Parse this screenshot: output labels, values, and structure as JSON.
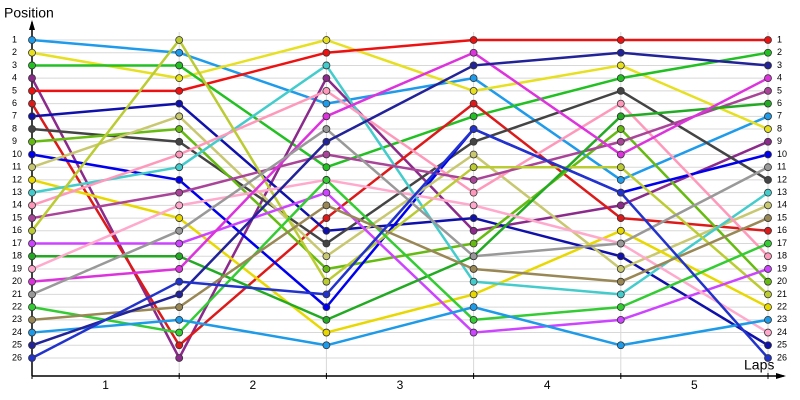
{
  "chart_data": {
    "type": "line",
    "y_title": "Position",
    "x_title": "Laps",
    "categories": [
      "1",
      "2",
      "3",
      "4",
      "5"
    ],
    "x": [
      0,
      1,
      2,
      3,
      4,
      5
    ],
    "xlim": [
      0,
      5
    ],
    "ylim": [
      26,
      1
    ],
    "yticks": [
      1,
      2,
      3,
      4,
      5,
      6,
      7,
      8,
      9,
      10,
      11,
      12,
      13,
      14,
      15,
      16,
      17,
      18,
      19,
      20,
      21,
      22,
      23,
      24,
      25,
      26
    ],
    "grid": true,
    "series": [
      {
        "color": "#1e9bea",
        "values": [
          1,
          2,
          6,
          4,
          12,
          7
        ]
      },
      {
        "color": "#e6e020",
        "values": [
          2,
          4,
          1,
          5,
          3,
          8
        ]
      },
      {
        "color": "#22c022",
        "values": [
          3,
          3,
          11,
          7,
          4,
          2
        ]
      },
      {
        "color": "#8b2a8b",
        "values": [
          4,
          26,
          4,
          16,
          14,
          9
        ]
      },
      {
        "color": "#ee1111",
        "values": [
          5,
          5,
          2,
          1,
          1,
          1
        ]
      },
      {
        "color": "#dd1a1a",
        "values": [
          6,
          25,
          15,
          6,
          15,
          16
        ]
      },
      {
        "color": "#1010aa",
        "values": [
          7,
          6,
          16,
          15,
          18,
          25
        ]
      },
      {
        "color": "#444444",
        "values": [
          8,
          9,
          17,
          9,
          5,
          12
        ]
      },
      {
        "color": "#66bb11",
        "values": [
          9,
          8,
          19,
          17,
          8,
          20
        ]
      },
      {
        "color": "#0000ee",
        "values": [
          10,
          12,
          22,
          8,
          13,
          10
        ]
      },
      {
        "color": "#c8c870",
        "values": [
          11,
          7,
          18,
          10,
          19,
          14
        ]
      },
      {
        "color": "#e8d800",
        "values": [
          12,
          15,
          24,
          21,
          16,
          22
        ]
      },
      {
        "color": "#44cccc",
        "values": [
          13,
          11,
          3,
          20,
          21,
          13
        ]
      },
      {
        "color": "#ff99bb",
        "values": [
          14,
          10,
          5,
          13,
          6,
          18
        ]
      },
      {
        "color": "#aa4499",
        "values": [
          15,
          13,
          10,
          12,
          9,
          5
        ]
      },
      {
        "color": "#bbcc33",
        "values": [
          16,
          1,
          20,
          11,
          11,
          21
        ]
      },
      {
        "color": "#cc44ff",
        "values": [
          17,
          17,
          13,
          24,
          23,
          19
        ]
      },
      {
        "color": "#22aa22",
        "values": [
          18,
          18,
          23,
          18,
          7,
          6
        ]
      },
      {
        "color": "#ffaacc",
        "values": [
          19,
          14,
          12,
          14,
          17,
          24
        ]
      },
      {
        "color": "#dd33dd",
        "values": [
          20,
          19,
          7,
          2,
          10,
          4
        ]
      },
      {
        "color": "#999999",
        "values": [
          21,
          16,
          8,
          18,
          17,
          11
        ]
      },
      {
        "color": "#33cc33",
        "values": [
          22,
          24,
          12,
          23,
          22,
          17
        ]
      },
      {
        "color": "#998855",
        "values": [
          23,
          22,
          14,
          19,
          20,
          15
        ]
      },
      {
        "color": "#1e9be8",
        "values": [
          24,
          23,
          25,
          22,
          25,
          23
        ]
      },
      {
        "color": "#222299",
        "values": [
          25,
          21,
          9,
          3,
          2,
          3
        ]
      },
      {
        "color": "#2233cc",
        "values": [
          26,
          20,
          21,
          8,
          13,
          26
        ]
      }
    ]
  }
}
